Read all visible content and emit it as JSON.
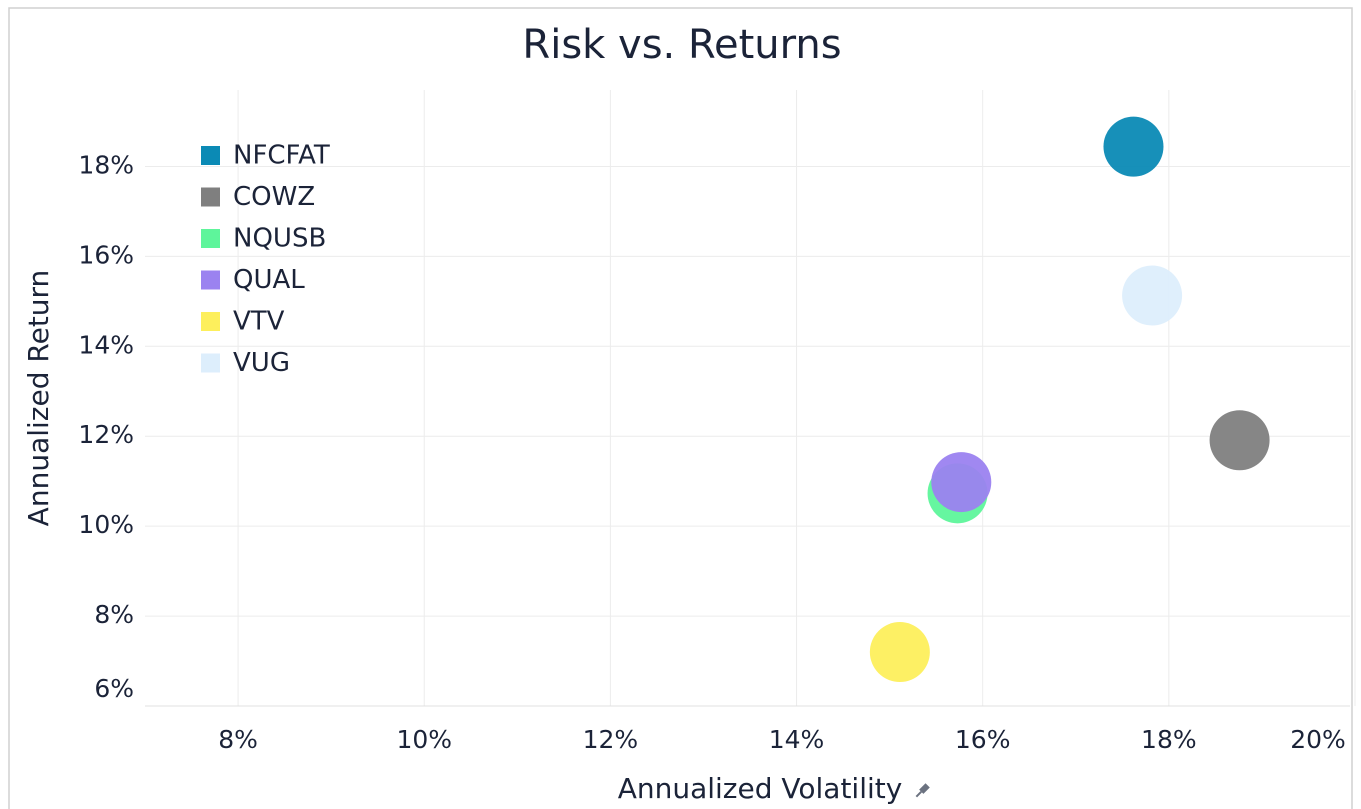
{
  "chart_data": {
    "type": "scatter",
    "title": "Risk vs. Returns",
    "x_label": "Annualized Volatility",
    "y_label": "Annualized Return",
    "xlim": [
      7,
      20
    ],
    "ylim": [
      6,
      19.7
    ],
    "xticks": [
      {
        "value": 8,
        "label": "8%"
      },
      {
        "value": 10,
        "label": "10%"
      },
      {
        "value": 12,
        "label": "12%"
      },
      {
        "value": 14,
        "label": "14%"
      },
      {
        "value": 16,
        "label": "16%"
      },
      {
        "value": 18,
        "label": "18%"
      },
      {
        "value": 20,
        "label": "20%"
      }
    ],
    "yticks": [
      {
        "value": 6,
        "label": "6%"
      },
      {
        "value": 8,
        "label": "8%"
      },
      {
        "value": 10,
        "label": "10%"
      },
      {
        "value": 12,
        "label": "12%"
      },
      {
        "value": 14,
        "label": "14%"
      },
      {
        "value": 16,
        "label": "16%"
      },
      {
        "value": 18,
        "label": "18%"
      }
    ],
    "grid": true,
    "legend": "upper left",
    "series": [
      {
        "name": "NFCFAT",
        "color": "#0b8ab5",
        "x": [
          17.62
        ],
        "values": [
          18.44
        ]
      },
      {
        "name": "COWZ",
        "color": "#7f7f7f",
        "x": [
          18.76
        ],
        "values": [
          11.91
        ]
      },
      {
        "name": "NQUSB",
        "color": "#5ef59b",
        "x": [
          15.73
        ],
        "values": [
          10.73
        ]
      },
      {
        "name": "QUAL",
        "color": "#9b82f0",
        "x": [
          15.77
        ],
        "values": [
          10.98
        ]
      },
      {
        "name": "VTV",
        "color": "#fdef5c",
        "x": [
          15.11
        ],
        "values": [
          7.2
        ]
      },
      {
        "name": "VUG",
        "color": "#ddeefc",
        "x": [
          17.82
        ],
        "values": [
          15.13
        ]
      }
    ]
  }
}
